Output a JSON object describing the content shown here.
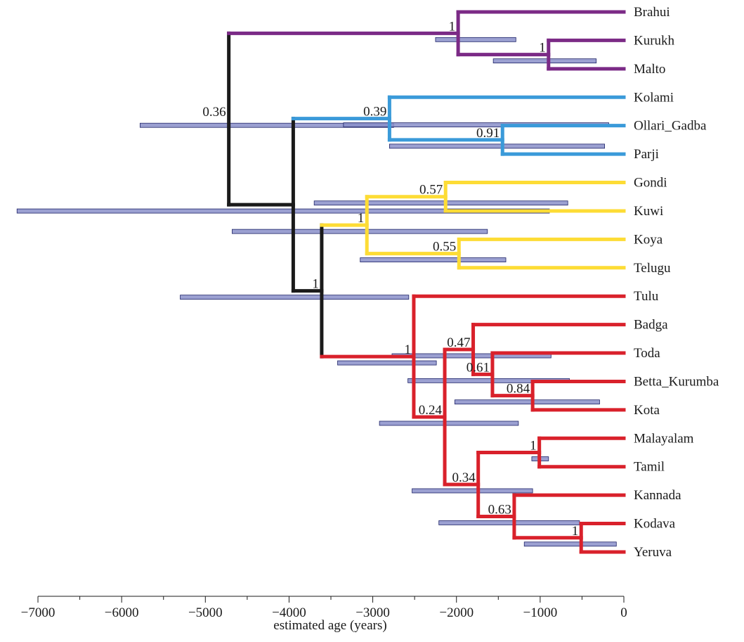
{
  "x_axis": {
    "label": "estimated age (years)",
    "ticks": [
      -7000,
      -6000,
      -5000,
      -4000,
      -3000,
      -2000,
      -1000,
      0
    ],
    "tick_labels": [
      "−7000",
      "−6000",
      "−5000",
      "−4000",
      "−3000",
      "−2000",
      "−1000",
      "0"
    ],
    "range": [
      -7300,
      0
    ]
  },
  "colors": {
    "root": "#1a1a1a",
    "north": "#7b2a86",
    "central": "#3a9ad9",
    "south_central": "#fddc35",
    "south": "#d9212b",
    "ci_fill": "#8a8fc9",
    "ci_stroke": "#1f2468"
  },
  "leaves": [
    "Brahui",
    "Kurukh",
    "Malto",
    "Kolami",
    "Ollari_Gadba",
    "Parji",
    "Gondi",
    "Kuwi",
    "Koya",
    "Telugu",
    "Tulu",
    "Badga",
    "Toda",
    "Betta_Kurumba",
    "Kota",
    "Malayalam",
    "Tamil",
    "Kannada",
    "Kodava",
    "Yeruva"
  ],
  "nodes": [
    {
      "id": "root",
      "age": -4720,
      "children": [
        "N_north",
        "C2"
      ],
      "color": "root",
      "ci": [
        -5780,
        -2750
      ],
      "support": "0.36"
    },
    {
      "id": "N_north",
      "age": -1980,
      "children": [
        "Brahui",
        "N_km"
      ],
      "color": "north",
      "ci": [
        -2250,
        -1290
      ],
      "support": "1"
    },
    {
      "id": "N_km",
      "age": -900,
      "children": [
        "Kurukh",
        "Malto"
      ],
      "color": "north",
      "ci": [
        -1560,
        -330
      ],
      "support": "1"
    },
    {
      "id": "C2",
      "age": -3950,
      "children": [
        "N_central",
        "C3"
      ],
      "color": "root",
      "ci": [
        -7250,
        -890
      ],
      "support": ""
    },
    {
      "id": "N_central",
      "age": -2800,
      "children": [
        "Kolami",
        "N_op"
      ],
      "color": "central",
      "ci": [
        -3350,
        -180
      ],
      "support": "0.39"
    },
    {
      "id": "N_op",
      "age": -1450,
      "children": [
        "Ollari_Gadba",
        "Parji"
      ],
      "color": "central",
      "ci": [
        -2800,
        -230
      ],
      "support": "0.91"
    },
    {
      "id": "C3",
      "age": -3610,
      "children": [
        "N_sc",
        "N_south"
      ],
      "color": "root",
      "ci": [
        -5300,
        -2570
      ],
      "support": "1"
    },
    {
      "id": "N_sc",
      "age": -3070,
      "children": [
        "N_gk",
        "N_kt"
      ],
      "color": "south_central",
      "ci": [
        -4680,
        -1630
      ],
      "support": "1"
    },
    {
      "id": "N_gk",
      "age": -2130,
      "children": [
        "Gondi",
        "Kuwi"
      ],
      "color": "south_central",
      "ci": [
        -3700,
        -670
      ],
      "support": "0.57"
    },
    {
      "id": "N_kt",
      "age": -1970,
      "children": [
        "Koya",
        "Telugu"
      ],
      "color": "south_central",
      "ci": [
        -3150,
        -1410
      ],
      "support": "0.55"
    },
    {
      "id": "N_south",
      "age": -2510,
      "children": [
        "Tulu",
        "S2"
      ],
      "color": "south",
      "ci": [
        -3420,
        -2240
      ],
      "support": "1"
    },
    {
      "id": "S2",
      "age": -2140,
      "children": [
        "N_sd",
        "N_st"
      ],
      "color": "south",
      "ci": [
        -2920,
        -1260
      ],
      "support": "0.24"
    },
    {
      "id": "N_sd",
      "age": -1800,
      "children": [
        "Badga",
        "N_tbk"
      ],
      "color": "south",
      "ci": [
        -2770,
        -870
      ],
      "support": "0.47"
    },
    {
      "id": "N_tbk",
      "age": -1570,
      "children": [
        "Toda",
        "N_bk"
      ],
      "color": "south",
      "ci": [
        -2580,
        -650
      ],
      "support": "0.61"
    },
    {
      "id": "N_bk",
      "age": -1090,
      "children": [
        "Betta_Kurumba",
        "Kota"
      ],
      "color": "south",
      "ci": [
        -2020,
        -290
      ],
      "support": "0.84"
    },
    {
      "id": "N_st",
      "age": -1740,
      "children": [
        "N_mt",
        "N_kky"
      ],
      "color": "south",
      "ci": [
        -2530,
        -1090
      ],
      "support": "0.34"
    },
    {
      "id": "N_mt",
      "age": -1010,
      "children": [
        "Malayalam",
        "Tamil"
      ],
      "color": "south",
      "ci": [
        -1100,
        -900
      ],
      "support": "1"
    },
    {
      "id": "N_kky",
      "age": -1310,
      "children": [
        "Kannada",
        "N_ky"
      ],
      "color": "south",
      "ci": [
        -2210,
        -530
      ],
      "support": "0.63"
    },
    {
      "id": "N_ky",
      "age": -510,
      "children": [
        "Kodava",
        "Yeruva"
      ],
      "color": "south",
      "ci": [
        -1190,
        -90
      ],
      "support": "1"
    }
  ]
}
